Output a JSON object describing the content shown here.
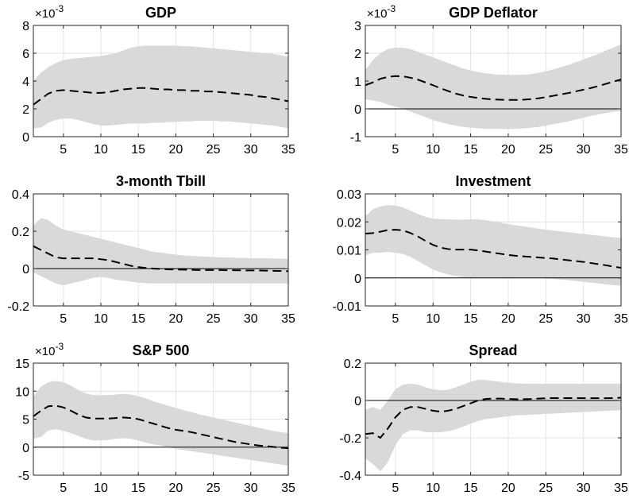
{
  "chart_data": [
    {
      "type": "area",
      "title": "GDP",
      "y_exponent": "-3",
      "x": [
        1,
        2,
        3,
        4,
        5,
        6,
        7,
        8,
        9,
        10,
        11,
        12,
        13,
        14,
        15,
        16,
        17,
        18,
        19,
        20,
        21,
        22,
        23,
        24,
        25,
        26,
        27,
        28,
        29,
        30,
        31,
        32,
        33,
        34,
        35
      ],
      "xlim": [
        1,
        35
      ],
      "ylim": [
        0,
        8
      ],
      "xticks": [
        5,
        10,
        15,
        20,
        25,
        30,
        35
      ],
      "yticks": [
        0,
        2,
        4,
        6,
        8
      ],
      "ytick_labels": [
        "0",
        "2",
        "4",
        "6",
        "8"
      ],
      "grid": true,
      "zero_line": false,
      "series": [
        {
          "role": "response",
          "style": "dashed",
          "values": [
            2.3,
            2.7,
            3.1,
            3.3,
            3.35,
            3.3,
            3.25,
            3.2,
            3.15,
            3.15,
            3.2,
            3.3,
            3.4,
            3.45,
            3.5,
            3.5,
            3.45,
            3.4,
            3.4,
            3.35,
            3.35,
            3.3,
            3.3,
            3.25,
            3.25,
            3.2,
            3.15,
            3.1,
            3.05,
            3.0,
            2.9,
            2.85,
            2.75,
            2.65,
            2.55
          ]
        },
        {
          "role": "band_upper",
          "values": [
            4.0,
            4.6,
            5.0,
            5.3,
            5.5,
            5.6,
            5.65,
            5.7,
            5.75,
            5.8,
            5.9,
            6.0,
            6.2,
            6.4,
            6.5,
            6.55,
            6.55,
            6.55,
            6.55,
            6.55,
            6.5,
            6.5,
            6.45,
            6.4,
            6.35,
            6.3,
            6.25,
            6.2,
            6.15,
            6.1,
            6.05,
            6.0,
            5.95,
            5.85,
            5.75
          ]
        },
        {
          "role": "band_lower",
          "values": [
            0.6,
            0.65,
            1.0,
            1.2,
            1.3,
            1.3,
            1.2,
            1.05,
            0.9,
            0.8,
            0.8,
            0.85,
            0.9,
            0.95,
            0.95,
            0.95,
            1.0,
            1.0,
            1.05,
            1.05,
            1.1,
            1.1,
            1.15,
            1.15,
            1.15,
            1.1,
            1.1,
            1.05,
            1.0,
            0.95,
            0.9,
            0.85,
            0.8,
            0.7,
            0.6
          ]
        }
      ]
    },
    {
      "type": "area",
      "title": "GDP Deflator",
      "y_exponent": "-3",
      "x": [
        1,
        2,
        3,
        4,
        5,
        6,
        7,
        8,
        9,
        10,
        11,
        12,
        13,
        14,
        15,
        16,
        17,
        18,
        19,
        20,
        21,
        22,
        23,
        24,
        25,
        26,
        27,
        28,
        29,
        30,
        31,
        32,
        33,
        34,
        35
      ],
      "xlim": [
        1,
        35
      ],
      "ylim": [
        -1,
        3
      ],
      "xticks": [
        5,
        10,
        15,
        20,
        25,
        30,
        35
      ],
      "yticks": [
        -1,
        0,
        1,
        2,
        3
      ],
      "ytick_labels": [
        "-1",
        "0",
        "1",
        "2",
        "3"
      ],
      "grid": true,
      "zero_line": true,
      "series": [
        {
          "role": "response",
          "style": "dashed",
          "values": [
            0.85,
            0.95,
            1.08,
            1.15,
            1.18,
            1.17,
            1.12,
            1.05,
            0.95,
            0.85,
            0.74,
            0.64,
            0.55,
            0.48,
            0.43,
            0.39,
            0.36,
            0.34,
            0.33,
            0.32,
            0.32,
            0.33,
            0.35,
            0.38,
            0.42,
            0.47,
            0.52,
            0.57,
            0.63,
            0.69,
            0.75,
            0.82,
            0.9,
            0.98,
            1.06
          ]
        },
        {
          "role": "band_upper",
          "values": [
            1.4,
            1.75,
            2.0,
            2.15,
            2.2,
            2.2,
            2.15,
            2.05,
            1.95,
            1.85,
            1.75,
            1.65,
            1.55,
            1.45,
            1.38,
            1.32,
            1.28,
            1.25,
            1.23,
            1.22,
            1.22,
            1.23,
            1.25,
            1.3,
            1.35,
            1.42,
            1.5,
            1.58,
            1.68,
            1.78,
            1.88,
            1.98,
            2.1,
            2.2,
            2.32
          ]
        },
        {
          "role": "band_lower",
          "values": [
            0.35,
            0.3,
            0.25,
            0.15,
            0.08,
            0.0,
            -0.1,
            -0.2,
            -0.3,
            -0.4,
            -0.48,
            -0.55,
            -0.6,
            -0.65,
            -0.68,
            -0.7,
            -0.72,
            -0.72,
            -0.72,
            -0.72,
            -0.72,
            -0.7,
            -0.68,
            -0.65,
            -0.6,
            -0.55,
            -0.5,
            -0.45,
            -0.38,
            -0.32,
            -0.25,
            -0.2,
            -0.15,
            -0.1,
            -0.07
          ]
        }
      ]
    },
    {
      "type": "area",
      "title": "3-month Tbill",
      "x": [
        1,
        2,
        3,
        4,
        5,
        6,
        7,
        8,
        9,
        10,
        11,
        12,
        13,
        14,
        15,
        16,
        17,
        18,
        19,
        20,
        21,
        22,
        23,
        24,
        25,
        26,
        27,
        28,
        29,
        30,
        31,
        32,
        33,
        34,
        35
      ],
      "xlim": [
        1,
        35
      ],
      "ylim": [
        -0.2,
        0.4
      ],
      "xticks": [
        5,
        10,
        15,
        20,
        25,
        30,
        35
      ],
      "yticks": [
        -0.2,
        0,
        0.2,
        0.4
      ],
      "ytick_labels": [
        "-0.2",
        "0",
        "0.2",
        "0.4"
      ],
      "grid": true,
      "zero_line": true,
      "series": [
        {
          "role": "response",
          "style": "dashed",
          "values": [
            0.12,
            0.1,
            0.08,
            0.06,
            0.055,
            0.055,
            0.055,
            0.055,
            0.055,
            0.05,
            0.045,
            0.035,
            0.025,
            0.015,
            0.008,
            0.003,
            0.0,
            -0.002,
            -0.004,
            -0.005,
            -0.006,
            -0.007,
            -0.008,
            -0.008,
            -0.008,
            -0.008,
            -0.009,
            -0.009,
            -0.01,
            -0.01,
            -0.01,
            -0.011,
            -0.012,
            -0.013,
            -0.014
          ]
        },
        {
          "role": "band_upper",
          "values": [
            0.23,
            0.27,
            0.26,
            0.23,
            0.21,
            0.2,
            0.19,
            0.18,
            0.17,
            0.16,
            0.15,
            0.14,
            0.13,
            0.12,
            0.11,
            0.1,
            0.09,
            0.085,
            0.08,
            0.075,
            0.07,
            0.068,
            0.066,
            0.064,
            0.062,
            0.06,
            0.06,
            0.058,
            0.057,
            0.056,
            0.055,
            0.055,
            0.054,
            0.053,
            0.052
          ]
        },
        {
          "role": "band_lower",
          "values": [
            -0.02,
            -0.04,
            -0.06,
            -0.08,
            -0.09,
            -0.08,
            -0.07,
            -0.06,
            -0.05,
            -0.045,
            -0.05,
            -0.06,
            -0.065,
            -0.07,
            -0.075,
            -0.078,
            -0.08,
            -0.08,
            -0.08,
            -0.08,
            -0.08,
            -0.08,
            -0.08,
            -0.08,
            -0.08,
            -0.08,
            -0.08,
            -0.08,
            -0.08,
            -0.08,
            -0.08,
            -0.08,
            -0.08,
            -0.08,
            -0.08
          ]
        }
      ]
    },
    {
      "type": "area",
      "title": "Investment",
      "x": [
        1,
        2,
        3,
        4,
        5,
        6,
        7,
        8,
        9,
        10,
        11,
        12,
        13,
        14,
        15,
        16,
        17,
        18,
        19,
        20,
        21,
        22,
        23,
        24,
        25,
        26,
        27,
        28,
        29,
        30,
        31,
        32,
        33,
        34,
        35
      ],
      "xlim": [
        1,
        35
      ],
      "ylim": [
        -0.01,
        0.03
      ],
      "xticks": [
        5,
        10,
        15,
        20,
        25,
        30,
        35
      ],
      "yticks": [
        -0.01,
        0,
        0.01,
        0.02,
        0.03
      ],
      "ytick_labels": [
        "-0.01",
        "0",
        "0.01",
        "0.02",
        "0.03"
      ],
      "grid": true,
      "zero_line": true,
      "series": [
        {
          "role": "response",
          "style": "dashed",
          "values": [
            0.0158,
            0.016,
            0.0165,
            0.0171,
            0.0172,
            0.017,
            0.016,
            0.0148,
            0.0132,
            0.0118,
            0.0108,
            0.0103,
            0.0101,
            0.0101,
            0.0101,
            0.0098,
            0.0094,
            0.009,
            0.0086,
            0.0082,
            0.0079,
            0.0077,
            0.0075,
            0.0073,
            0.0071,
            0.0069,
            0.0066,
            0.0063,
            0.006,
            0.0057,
            0.0053,
            0.0049,
            0.0045,
            0.004,
            0.0036
          ]
        },
        {
          "role": "band_upper",
          "values": [
            0.022,
            0.0245,
            0.0255,
            0.026,
            0.0258,
            0.0252,
            0.024,
            0.0228,
            0.0218,
            0.0212,
            0.021,
            0.0209,
            0.0208,
            0.0208,
            0.0209,
            0.0209,
            0.0206,
            0.0202,
            0.0197,
            0.0192,
            0.0188,
            0.0184,
            0.018,
            0.0176,
            0.0172,
            0.0169,
            0.0166,
            0.0163,
            0.016,
            0.0157,
            0.0154,
            0.0151,
            0.0148,
            0.0145,
            0.0143
          ]
        },
        {
          "role": "band_lower",
          "values": [
            0.008,
            0.009,
            0.009,
            0.0093,
            0.009,
            0.0085,
            0.0075,
            0.006,
            0.0045,
            0.003,
            0.002,
            0.0012,
            0.0007,
            0.0003,
            0.0001,
            0.0,
            0.0,
            0.0,
            0.0,
            0.0,
            0.0,
            0.0,
            0.0,
            0.0,
            -0.0002,
            -0.0004,
            -0.0006,
            -0.0008,
            -0.0011,
            -0.0014,
            -0.0017,
            -0.002,
            -0.0023,
            -0.0026,
            -0.0028
          ]
        }
      ]
    },
    {
      "type": "area",
      "title": "S&P 500",
      "y_exponent": "-3",
      "x": [
        1,
        2,
        3,
        4,
        5,
        6,
        7,
        8,
        9,
        10,
        11,
        12,
        13,
        14,
        15,
        16,
        17,
        18,
        19,
        20,
        21,
        22,
        23,
        24,
        25,
        26,
        27,
        28,
        29,
        30,
        31,
        32,
        33,
        34,
        35
      ],
      "xlim": [
        1,
        35
      ],
      "ylim": [
        -5,
        15
      ],
      "xticks": [
        5,
        10,
        15,
        20,
        25,
        30,
        35
      ],
      "yticks": [
        -5,
        0,
        5,
        10,
        15
      ],
      "ytick_labels": [
        "-5",
        "0",
        "5",
        "10",
        "15"
      ],
      "grid": true,
      "zero_line": true,
      "series": [
        {
          "role": "response",
          "style": "dashed",
          "values": [
            5.5,
            6.5,
            7.3,
            7.4,
            7.1,
            6.5,
            5.8,
            5.3,
            5.1,
            5.1,
            5.1,
            5.2,
            5.3,
            5.2,
            5.0,
            4.6,
            4.2,
            3.8,
            3.4,
            3.1,
            2.9,
            2.7,
            2.4,
            2.1,
            1.8,
            1.5,
            1.2,
            0.9,
            0.7,
            0.5,
            0.3,
            0.2,
            0.05,
            -0.1,
            -0.2
          ]
        },
        {
          "role": "band_upper",
          "values": [
            9.0,
            10.8,
            11.6,
            11.8,
            11.6,
            11.0,
            10.2,
            9.6,
            9.3,
            9.3,
            9.3,
            9.4,
            9.5,
            9.4,
            9.1,
            8.7,
            8.2,
            7.8,
            7.4,
            7.0,
            6.6,
            6.3,
            5.9,
            5.6,
            5.3,
            5.0,
            4.7,
            4.4,
            4.1,
            3.8,
            3.5,
            3.2,
            2.9,
            2.7,
            2.5
          ]
        },
        {
          "role": "band_lower",
          "values": [
            1.5,
            1.8,
            3.0,
            3.2,
            2.9,
            2.5,
            2.0,
            1.5,
            1.2,
            1.2,
            1.3,
            1.5,
            1.6,
            1.5,
            1.2,
            0.8,
            0.5,
            0.3,
            0.0,
            -0.3,
            -0.5,
            -0.7,
            -0.9,
            -1.1,
            -1.3,
            -1.5,
            -1.7,
            -1.9,
            -2.1,
            -2.3,
            -2.5,
            -2.7,
            -2.9,
            -3.1,
            -3.3
          ]
        }
      ]
    },
    {
      "type": "area",
      "title": "Spread",
      "x": [
        1,
        2,
        3,
        4,
        5,
        6,
        7,
        8,
        9,
        10,
        11,
        12,
        13,
        14,
        15,
        16,
        17,
        18,
        19,
        20,
        21,
        22,
        23,
        24,
        25,
        26,
        27,
        28,
        29,
        30,
        31,
        32,
        33,
        34,
        35
      ],
      "xlim": [
        1,
        35
      ],
      "ylim": [
        -0.4,
        0.2
      ],
      "xticks": [
        5,
        10,
        15,
        20,
        25,
        30,
        35
      ],
      "yticks": [
        -0.4,
        -0.2,
        0,
        0.2
      ],
      "ytick_labels": [
        "-0.4",
        "-0.2",
        "0",
        "0.2"
      ],
      "grid": true,
      "zero_line": true,
      "series": [
        {
          "role": "response",
          "style": "dashed",
          "values": [
            -0.18,
            -0.175,
            -0.2,
            -0.15,
            -0.09,
            -0.05,
            -0.035,
            -0.035,
            -0.045,
            -0.055,
            -0.06,
            -0.055,
            -0.045,
            -0.03,
            -0.015,
            0.0,
            0.008,
            0.01,
            0.01,
            0.008,
            0.007,
            0.007,
            0.008,
            0.01,
            0.012,
            0.013,
            0.013,
            0.013,
            0.013,
            0.012,
            0.012,
            0.012,
            0.012,
            0.013,
            0.015
          ]
        },
        {
          "role": "band_upper",
          "values": [
            -0.05,
            -0.035,
            -0.05,
            0.0,
            0.06,
            0.085,
            0.09,
            0.085,
            0.07,
            0.06,
            0.055,
            0.058,
            0.07,
            0.085,
            0.1,
            0.11,
            0.11,
            0.105,
            0.1,
            0.095,
            0.092,
            0.09,
            0.09,
            0.09,
            0.09,
            0.09,
            0.09,
            0.09,
            0.09,
            0.09,
            0.09,
            0.09,
            0.09,
            0.09,
            0.09
          ]
        },
        {
          "role": "band_lower",
          "values": [
            -0.31,
            -0.34,
            -0.38,
            -0.33,
            -0.24,
            -0.18,
            -0.16,
            -0.16,
            -0.17,
            -0.17,
            -0.17,
            -0.165,
            -0.155,
            -0.14,
            -0.125,
            -0.11,
            -0.1,
            -0.095,
            -0.09,
            -0.085,
            -0.08,
            -0.078,
            -0.076,
            -0.074,
            -0.072,
            -0.07,
            -0.068,
            -0.066,
            -0.064,
            -0.062,
            -0.06,
            -0.058,
            -0.056,
            -0.054,
            -0.052
          ]
        }
      ]
    }
  ]
}
